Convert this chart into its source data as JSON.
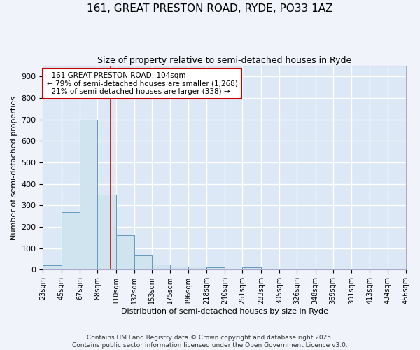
{
  "title_line1": "161, GREAT PRESTON ROAD, RYDE, PO33 1AZ",
  "title_line2": "Size of property relative to semi-detached houses in Ryde",
  "xlabel": "Distribution of semi-detached houses by size in Ryde",
  "ylabel": "Number of semi-detached properties",
  "bin_edges": [
    23,
    45,
    67,
    88,
    110,
    132,
    153,
    175,
    196,
    218,
    240,
    261,
    283,
    305,
    326,
    348,
    369,
    391,
    413,
    434,
    456
  ],
  "bar_heights": [
    20,
    270,
    700,
    350,
    160,
    65,
    25,
    15,
    15,
    10,
    0,
    10,
    0,
    0,
    0,
    0,
    0,
    0,
    0,
    0
  ],
  "bar_color": "#d0e4f0",
  "bar_edge_color": "#6699bb",
  "red_line_x": 104,
  "annotation_text": "  161 GREAT PRESTON ROAD: 104sqm\n← 79% of semi-detached houses are smaller (1,268)\n  21% of semi-detached houses are larger (338) →",
  "annotation_box_color": "#ffffff",
  "annotation_box_edge_color": "#cc0000",
  "ylim": [
    0,
    950
  ],
  "plot_bg_color": "#dce8f5",
  "grid_color": "#ffffff",
  "footer_text": "Contains HM Land Registry data © Crown copyright and database right 2025.\nContains public sector information licensed under the Open Government Licence v3.0.",
  "tick_labels": [
    "23sqm",
    "45sqm",
    "67sqm",
    "88sqm",
    "110sqm",
    "132sqm",
    "153sqm",
    "175sqm",
    "196sqm",
    "218sqm",
    "240sqm",
    "261sqm",
    "283sqm",
    "305sqm",
    "326sqm",
    "348sqm",
    "369sqm",
    "391sqm",
    "413sqm",
    "434sqm",
    "456sqm"
  ],
  "fig_bg_color": "#f0f4fa"
}
